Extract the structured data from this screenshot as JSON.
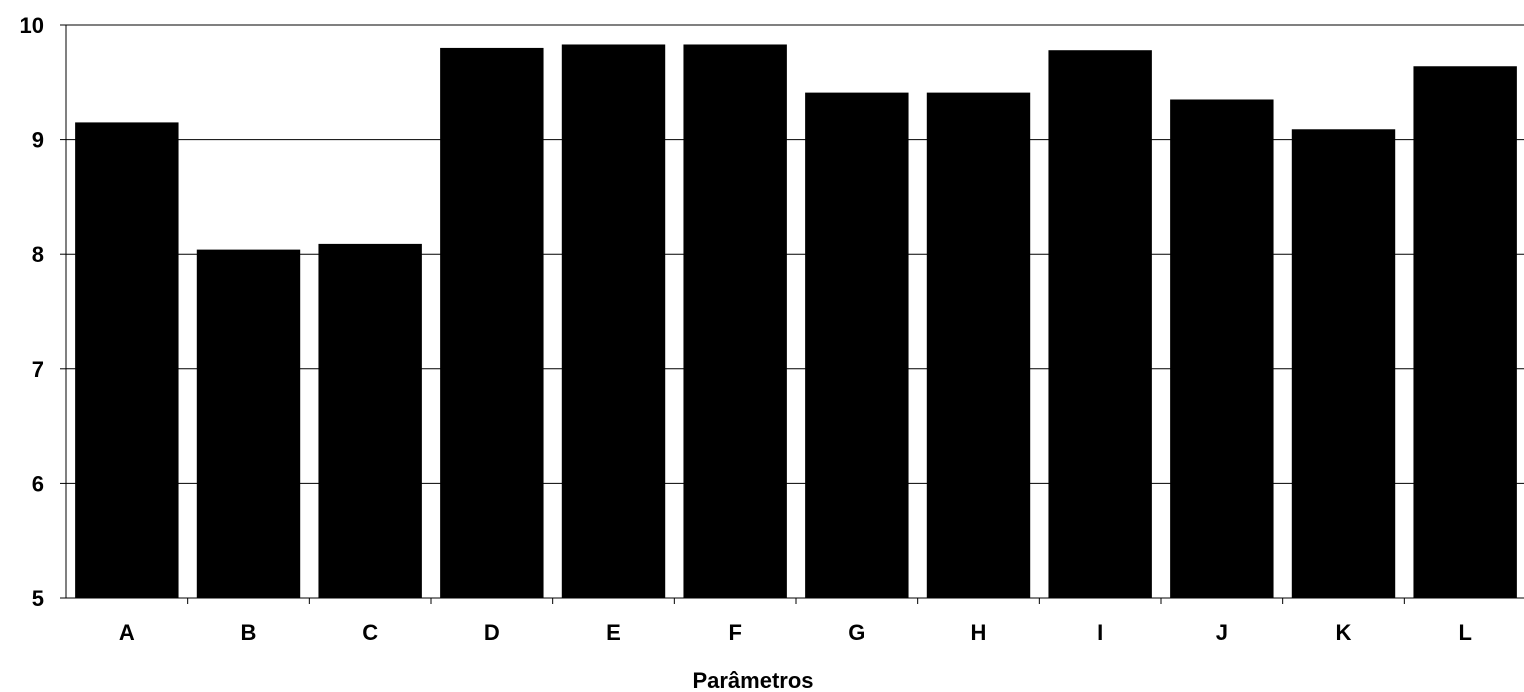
{
  "chart_data": {
    "type": "bar",
    "title": "",
    "xlabel": "Parâmetros",
    "ylabel": "",
    "categories": [
      "A",
      "B",
      "C",
      "D",
      "E",
      "F",
      "G",
      "H",
      "I",
      "J",
      "K",
      "L"
    ],
    "values": [
      9.15,
      8.04,
      8.09,
      9.8,
      9.83,
      9.83,
      9.41,
      9.41,
      9.78,
      9.35,
      9.09,
      9.64
    ],
    "ylim": [
      5,
      10
    ],
    "yticks": [
      5,
      6,
      7,
      8,
      9,
      10
    ],
    "grid": "horizontal",
    "bar_color": "#000000",
    "gridline_color": "#000000"
  }
}
